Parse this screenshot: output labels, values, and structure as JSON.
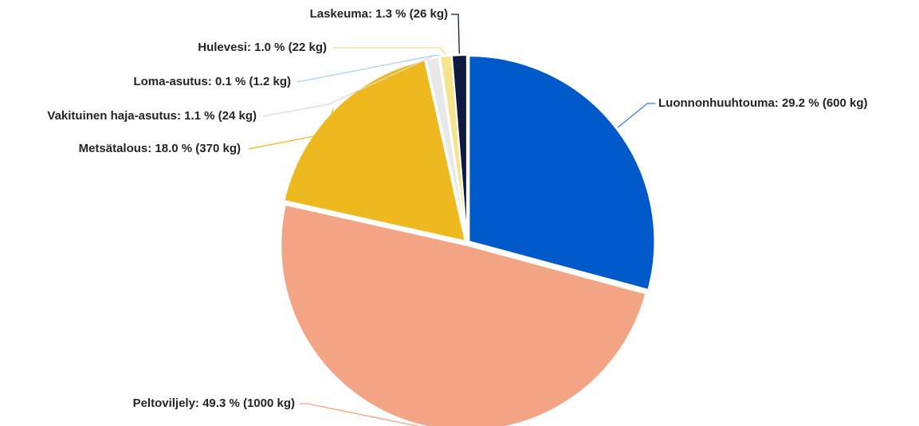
{
  "chart_data": {
    "type": "pie",
    "title": "",
    "unit": "kg",
    "start_angle_deg": 0,
    "direction": "clockwise",
    "slices": [
      {
        "name": "Luonnonhuuhtouma",
        "percent": 29.2,
        "value": 600,
        "label": "Luonnonhuuhtouma: 29.2 % (600 kg)",
        "color": "#0059C9"
      },
      {
        "name": "Peltoviljely",
        "percent": 49.3,
        "value": 1000,
        "label": "Peltoviljely: 49.3 % (1000 kg)",
        "color": "#F2A485"
      },
      {
        "name": "Metsätalous",
        "percent": 18.0,
        "value": 370,
        "label": "Metsätalous: 18.0 % (370 kg)",
        "color": "#EEB91E"
      },
      {
        "name": "Vakituinen haja-asutus",
        "percent": 1.1,
        "value": 24,
        "label": "Vakituinen haja-asutus: 1.1 % (24 kg)",
        "color": "#E8E8E8"
      },
      {
        "name": "Loma-asutus",
        "percent": 0.1,
        "value": 1.2,
        "label": "Loma-asutus: 0.1 % (1.2 kg)",
        "color": "#A8D2EC"
      },
      {
        "name": "Hulevesi",
        "percent": 1.0,
        "value": 22,
        "label": "Hulevesi: 1.0 % (22 kg)",
        "color": "#F5E48E"
      },
      {
        "name": "Laskeuma",
        "percent": 1.3,
        "value": 26,
        "label": "Laskeuma: 1.3 % (26 kg)",
        "color": "#0E1A3F"
      }
    ]
  }
}
